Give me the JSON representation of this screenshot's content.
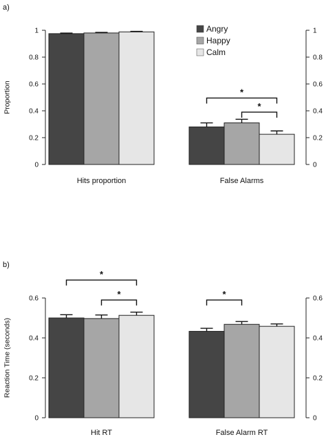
{
  "chart_data": [
    {
      "type": "bar",
      "panel_label": "a)",
      "ylabel": "Proportion",
      "ylim": [
        0,
        1
      ],
      "yticks": [
        0,
        0.2,
        0.4,
        0.6,
        0.8,
        1
      ],
      "ytick_labels_left": [
        "0",
        "0.2",
        "0.4",
        "0.6",
        "0.8",
        "1"
      ],
      "ytick_labels_right": [
        "0",
        "0.2",
        "0.4",
        "0.6",
        "0.8",
        "1"
      ],
      "legend_position": "top-center",
      "legend": [
        {
          "name": "Angry",
          "color": "#454545"
        },
        {
          "name": "Happy",
          "color": "#a6a6a6"
        },
        {
          "name": "Calm",
          "color": "#e6e6e6"
        }
      ],
      "groups": [
        {
          "label": "Hits proportion",
          "values": [
            0.975,
            0.98,
            0.988
          ],
          "errors": [
            0.004,
            0.004,
            0.004
          ]
        },
        {
          "label": "False Alarms",
          "values": [
            0.28,
            0.31,
            0.225
          ],
          "errors": [
            0.03,
            0.027,
            0.025
          ]
        }
      ],
      "significance": [
        {
          "group": 1,
          "from": 0,
          "to": 2,
          "y": 0.495,
          "label": "*"
        },
        {
          "group": 1,
          "from": 1,
          "to": 2,
          "y": 0.39,
          "label": "*"
        }
      ]
    },
    {
      "type": "bar",
      "panel_label": "b)",
      "ylabel": "Reaction Time (seconds)",
      "ylim": [
        0,
        0.6
      ],
      "yticks": [
        0,
        0.2,
        0.4,
        0.6
      ],
      "ytick_labels_left": [
        "0",
        "0.2",
        "0.4",
        "0.6"
      ],
      "ytick_labels_right": [
        "0",
        "0.2",
        "0.4",
        "0.6"
      ],
      "groups": [
        {
          "label": "Hit RT",
          "values": [
            0.5,
            0.497,
            0.513
          ],
          "errors": [
            0.016,
            0.018,
            0.016
          ]
        },
        {
          "label": "False Alarm RT",
          "values": [
            0.433,
            0.468,
            0.458
          ],
          "errors": [
            0.015,
            0.014,
            0.012
          ]
        }
      ],
      "significance": [
        {
          "group": 0,
          "from": 0,
          "to": 2,
          "y": 0.69,
          "label": "*"
        },
        {
          "group": 0,
          "from": 1,
          "to": 2,
          "y": 0.59,
          "label": "*"
        },
        {
          "group": 1,
          "from": 0,
          "to": 1,
          "y": 0.59,
          "label": "*"
        }
      ]
    }
  ]
}
